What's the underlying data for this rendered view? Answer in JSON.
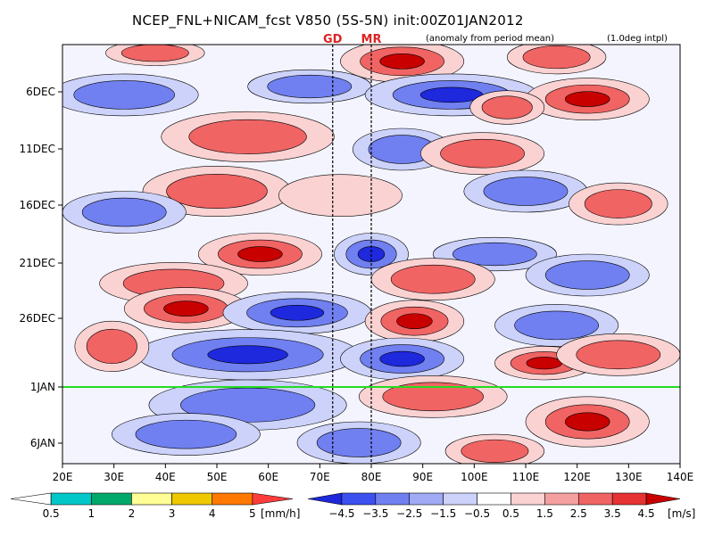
{
  "chart_data": {
    "type": "heatmap",
    "title": "NCEP_FNL+NICAM_fcst V850 (5S-5N) init:00Z01JAN2012",
    "subtitle_anomaly": "(anomaly from period mean)",
    "subtitle_interp": "(1.0deg intpl)",
    "x_ticks": [
      "20E",
      "30E",
      "40E",
      "50E",
      "60E",
      "70E",
      "80E",
      "90E",
      "100E",
      "110E",
      "120E",
      "130E",
      "140E"
    ],
    "x_range": [
      20,
      140
    ],
    "y_ticks": [
      "6DEC",
      "11DEC",
      "16DEC",
      "21DEC",
      "26DEC",
      "1JAN",
      "6JAN"
    ],
    "markers": [
      {
        "label": "GD",
        "lon": 72.5
      },
      {
        "label": "MR",
        "lon": 80
      }
    ],
    "forecast_start": "1JAN",
    "precip_legend": {
      "unit": "[mm/h]",
      "labels": [
        "0.5",
        "1",
        "2",
        "3",
        "4",
        "5"
      ],
      "colors": [
        "#ffffff",
        "#00c8c8",
        "#00a86b",
        "#ffff96",
        "#f0c800",
        "#ff7800",
        "#ff3c3c"
      ]
    },
    "wind_legend": {
      "unit": "[m/s]",
      "labels": [
        "−4.5",
        "−3.5",
        "−2.5",
        "−1.5",
        "−0.5",
        "0.5",
        "1.5",
        "2.5",
        "3.5",
        "4.5"
      ],
      "colors": [
        "#1e28dc",
        "#3c50f0",
        "#7080f0",
        "#a0aaf5",
        "#ccd2fa",
        "#ffffff",
        "#fad2d2",
        "#f5a0a0",
        "#f06464",
        "#e63232",
        "#c80000"
      ]
    }
  }
}
